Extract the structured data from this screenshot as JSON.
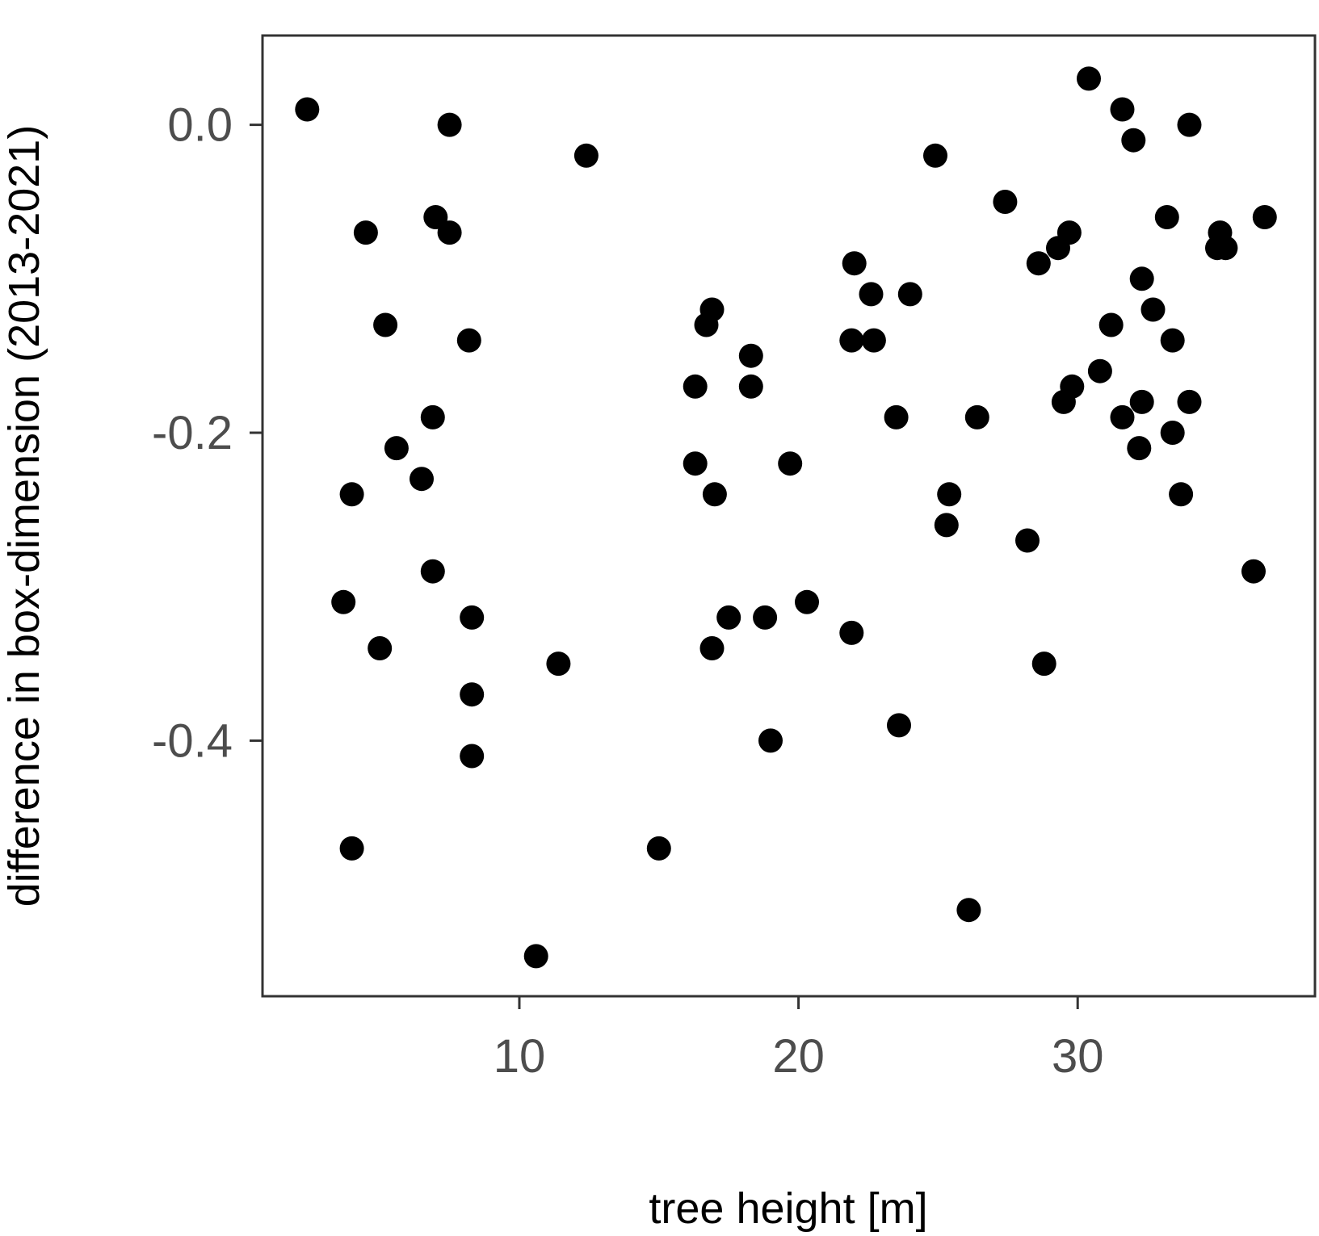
{
  "chart_data": {
    "type": "scatter",
    "title": "",
    "xlabel": "tree height [m]",
    "ylabel": "difference in box-dimension (2013-2021)",
    "xlim": [
      0.8,
      38.5
    ],
    "ylim": [
      -0.566,
      0.058
    ],
    "x_ticks": [
      10,
      20,
      30
    ],
    "y_ticks": [
      0.0,
      -0.2,
      -0.4
    ],
    "x_tick_labels": [
      "10",
      "20",
      "30"
    ],
    "y_tick_labels": [
      "0.0",
      "-0.2",
      "-0.4"
    ],
    "grid": false,
    "legend": "none",
    "point_color": "#000000",
    "points": [
      {
        "x": 2.4,
        "y": 0.01
      },
      {
        "x": 7.5,
        "y": 0.0
      },
      {
        "x": 12.4,
        "y": -0.02
      },
      {
        "x": 4.5,
        "y": -0.07
      },
      {
        "x": 7.0,
        "y": -0.06
      },
      {
        "x": 7.5,
        "y": -0.07
      },
      {
        "x": 5.2,
        "y": -0.13
      },
      {
        "x": 8.2,
        "y": -0.14
      },
      {
        "x": 6.9,
        "y": -0.19
      },
      {
        "x": 5.6,
        "y": -0.21
      },
      {
        "x": 6.5,
        "y": -0.23
      },
      {
        "x": 4.0,
        "y": -0.24
      },
      {
        "x": 6.9,
        "y": -0.29
      },
      {
        "x": 3.7,
        "y": -0.31
      },
      {
        "x": 8.3,
        "y": -0.32
      },
      {
        "x": 5.0,
        "y": -0.34
      },
      {
        "x": 11.4,
        "y": -0.35
      },
      {
        "x": 8.3,
        "y": -0.37
      },
      {
        "x": 8.3,
        "y": -0.41
      },
      {
        "x": 4.0,
        "y": -0.47
      },
      {
        "x": 15.0,
        "y": -0.47
      },
      {
        "x": 10.6,
        "y": -0.54
      },
      {
        "x": 16.9,
        "y": -0.12
      },
      {
        "x": 16.7,
        "y": -0.13
      },
      {
        "x": 18.3,
        "y": -0.15
      },
      {
        "x": 16.3,
        "y": -0.17
      },
      {
        "x": 18.3,
        "y": -0.17
      },
      {
        "x": 16.3,
        "y": -0.22
      },
      {
        "x": 19.7,
        "y": -0.22
      },
      {
        "x": 17.0,
        "y": -0.24
      },
      {
        "x": 17.5,
        "y": -0.32
      },
      {
        "x": 18.8,
        "y": -0.32
      },
      {
        "x": 20.3,
        "y": -0.31
      },
      {
        "x": 16.9,
        "y": -0.34
      },
      {
        "x": 19.0,
        "y": -0.4
      },
      {
        "x": 22.0,
        "y": -0.09
      },
      {
        "x": 22.6,
        "y": -0.11
      },
      {
        "x": 24.0,
        "y": -0.11
      },
      {
        "x": 21.9,
        "y": -0.14
      },
      {
        "x": 22.7,
        "y": -0.14
      },
      {
        "x": 23.5,
        "y": -0.19
      },
      {
        "x": 21.9,
        "y": -0.33
      },
      {
        "x": 23.6,
        "y": -0.39
      },
      {
        "x": 24.9,
        "y": -0.02
      },
      {
        "x": 27.4,
        "y": -0.05
      },
      {
        "x": 26.4,
        "y": -0.19
      },
      {
        "x": 25.4,
        "y": -0.24
      },
      {
        "x": 25.3,
        "y": -0.26
      },
      {
        "x": 28.2,
        "y": -0.27
      },
      {
        "x": 28.8,
        "y": -0.35
      },
      {
        "x": 26.1,
        "y": -0.51
      },
      {
        "x": 30.4,
        "y": 0.03
      },
      {
        "x": 31.6,
        "y": 0.01
      },
      {
        "x": 32.0,
        "y": -0.01
      },
      {
        "x": 34.0,
        "y": 0.0
      },
      {
        "x": 29.7,
        "y": -0.07
      },
      {
        "x": 29.3,
        "y": -0.08
      },
      {
        "x": 28.6,
        "y": -0.09
      },
      {
        "x": 33.2,
        "y": -0.06
      },
      {
        "x": 35.1,
        "y": -0.07
      },
      {
        "x": 35.0,
        "y": -0.08
      },
      {
        "x": 35.3,
        "y": -0.08
      },
      {
        "x": 36.7,
        "y": -0.06
      },
      {
        "x": 32.3,
        "y": -0.1
      },
      {
        "x": 32.7,
        "y": -0.12
      },
      {
        "x": 31.2,
        "y": -0.13
      },
      {
        "x": 33.4,
        "y": -0.14
      },
      {
        "x": 30.8,
        "y": -0.16
      },
      {
        "x": 29.8,
        "y": -0.17
      },
      {
        "x": 29.5,
        "y": -0.18
      },
      {
        "x": 32.3,
        "y": -0.18
      },
      {
        "x": 34.0,
        "y": -0.18
      },
      {
        "x": 31.6,
        "y": -0.19
      },
      {
        "x": 33.4,
        "y": -0.2
      },
      {
        "x": 32.2,
        "y": -0.21
      },
      {
        "x": 33.7,
        "y": -0.24
      },
      {
        "x": 36.3,
        "y": -0.29
      }
    ]
  }
}
